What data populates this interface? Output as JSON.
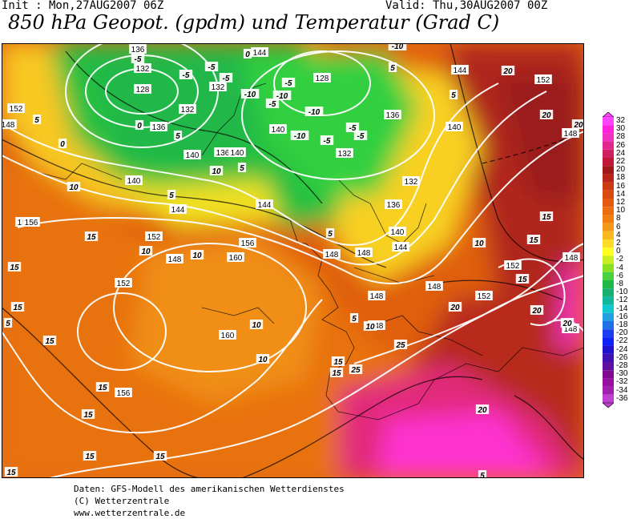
{
  "header": {
    "init": "Init : Mon,27AUG2007 06Z",
    "valid": "Valid: Thu,30AUG2007 00Z",
    "title": "850 hPa Geopot. (gpdm) und Temperatur (Grad C)"
  },
  "legend": {
    "labels": [
      "32",
      "30",
      "28",
      "26",
      "24",
      "22",
      "20",
      "18",
      "16",
      "14",
      "12",
      "10",
      "8",
      "6",
      "4",
      "2",
      "0",
      "-2",
      "-4",
      "-6",
      "-8",
      "-10",
      "-12",
      "-14",
      "-16",
      "-18",
      "-20",
      "-22",
      "-24",
      "-26",
      "-28",
      "-30",
      "-32",
      "-34",
      "-36"
    ],
    "colors": [
      "#ff44ff",
      "#ff22dd",
      "#f030c0",
      "#e02890",
      "#d02060",
      "#c01838",
      "#a01818",
      "#b82418",
      "#cc3a10",
      "#d84a10",
      "#e45a10",
      "#ec6c10",
      "#f07e10",
      "#f49818",
      "#f8b820",
      "#fcdc28",
      "#ffff20",
      "#c8f020",
      "#88e020",
      "#48d040",
      "#20b848",
      "#18b070",
      "#10b8a0",
      "#10c8d0",
      "#20a0e0",
      "#2070e8",
      "#1840f0",
      "#1020f8",
      "#2010d0",
      "#4010b0",
      "#6010a0",
      "#800890",
      "#9810a0",
      "#a020b0",
      "#c040d0"
    ]
  },
  "map": {
    "geopotential_labels": [
      "136",
      "132",
      "128",
      "132",
      "144",
      "128",
      "136",
      "140",
      "140",
      "144",
      "152",
      "148",
      "132",
      "136",
      "140",
      "132",
      "136",
      "140",
      "140",
      "144",
      "148",
      "152",
      "156",
      "148",
      "148",
      "156",
      "152",
      "160",
      "160",
      "148",
      "152",
      "148",
      "148",
      "152",
      "156",
      "148",
      "152",
      "144",
      "132",
      "140",
      "136",
      "148",
      "144",
      "148",
      "156"
    ],
    "temperature_labels": [
      "-5",
      "-5",
      "0",
      "-5",
      "-5",
      "-10",
      "-10",
      "-5",
      "-5",
      "-10",
      "-5",
      "-5",
      "-10",
      "-5",
      "-10",
      "5",
      "5",
      "0",
      "5",
      "10",
      "5",
      "5",
      "0",
      "5",
      "5",
      "10",
      "10",
      "15",
      "10",
      "10",
      "15",
      "15",
      "10",
      "15",
      "15",
      "20",
      "20",
      "20",
      "25",
      "20",
      "20",
      "25",
      "15",
      "15",
      "10",
      "5",
      "20",
      "15",
      "5",
      "20",
      "15",
      "15",
      "15",
      "15",
      "15",
      "10",
      "15",
      "5"
    ]
  },
  "footer": {
    "line1": "Daten: GFS-Modell des amerikanischen Wetterdienstes",
    "line2": "(C) Wetterzentrale",
    "line3": "www.wetterzentrale.de"
  }
}
